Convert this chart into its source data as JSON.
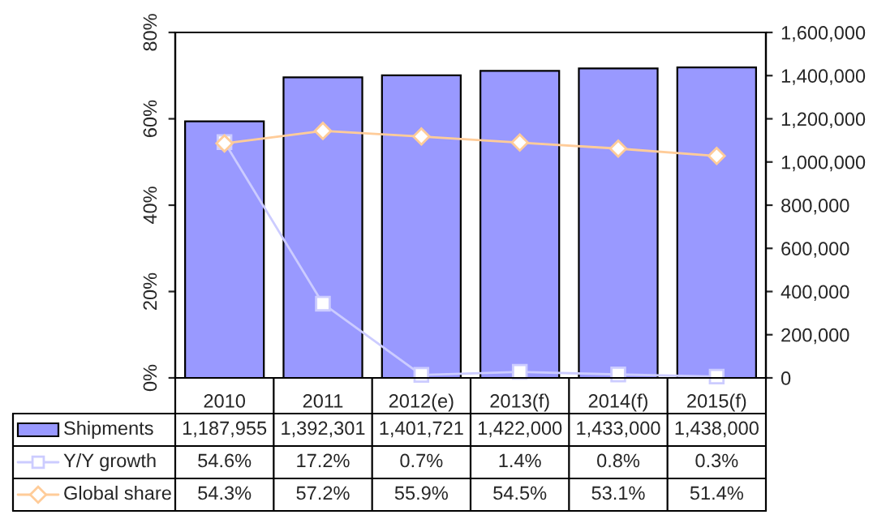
{
  "chart_data": {
    "type": "bar",
    "categories": [
      "2010",
      "2011",
      "2012(e)",
      "2013(f)",
      "2014(f)",
      "2015(f)"
    ],
    "series": [
      {
        "name": "Shipments",
        "axis": "y2",
        "color": "#9999ff",
        "values": [
          1187955,
          1392301,
          1401721,
          1422000,
          1433000,
          1438000
        ],
        "value_labels": [
          "1,187,955",
          "1,392,301",
          "1,401,721",
          "1,422,000",
          "1,433,000",
          "1,438,000"
        ]
      },
      {
        "name": "Y/Y growth",
        "type": "line",
        "axis": "y",
        "color": "#ccccff",
        "marker": "square",
        "values": [
          54.6,
          17.2,
          0.7,
          1.4,
          0.8,
          0.3
        ],
        "value_labels": [
          "54.6%",
          "17.2%",
          "0.7%",
          "1.4%",
          "0.8%",
          "0.3%"
        ]
      },
      {
        "name": "Global share",
        "type": "line",
        "axis": "y",
        "color": "#ffcc99",
        "marker": "diamond",
        "values": [
          54.3,
          57.2,
          55.9,
          54.5,
          53.1,
          51.4
        ],
        "value_labels": [
          "54.3%",
          "57.2%",
          "55.9%",
          "54.5%",
          "53.1%",
          "51.4%"
        ]
      }
    ],
    "ylim": [
      0,
      80
    ],
    "yticks": [
      {
        "value": 0,
        "label": "0%"
      },
      {
        "value": 20,
        "label": "20%"
      },
      {
        "value": 40,
        "label": "40%"
      },
      {
        "value": 60,
        "label": "60%"
      },
      {
        "value": 80,
        "label": "80%"
      }
    ],
    "y2lim": [
      0,
      1600000
    ],
    "y2ticks": [
      {
        "value": 0,
        "label": "0"
      },
      {
        "value": 200000,
        "label": "200,000"
      },
      {
        "value": 400000,
        "label": "400,000"
      },
      {
        "value": 600000,
        "label": "600,000"
      },
      {
        "value": 800000,
        "label": "800,000"
      },
      {
        "value": 1000000,
        "label": "1,000,000"
      },
      {
        "value": 1200000,
        "label": "1,200,000"
      },
      {
        "value": 1400000,
        "label": "1,400,000"
      },
      {
        "value": 1600000,
        "label": "1,600,000"
      }
    ],
    "grid": false,
    "legend": "bottom"
  }
}
